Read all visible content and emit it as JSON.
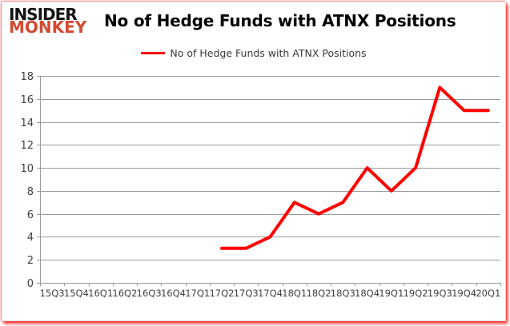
{
  "header": {
    "logo_line1": "INSIDER",
    "logo_line2": "MONKEY",
    "title": "No of Hedge Funds with ATNX Positions"
  },
  "legend": {
    "label": "No of Hedge Funds with ATNX Positions",
    "color": "#ff0000"
  },
  "chart_data": {
    "type": "line",
    "title": "No of Hedge Funds with ATNX Positions",
    "xlabel": "",
    "ylabel": "",
    "categories": [
      "15Q3",
      "15Q4",
      "16Q1",
      "16Q2",
      "16Q3",
      "16Q4",
      "17Q1",
      "17Q2",
      "17Q3",
      "17Q4",
      "18Q1",
      "18Q2",
      "18Q3",
      "18Q4",
      "19Q1",
      "19Q2",
      "19Q3",
      "19Q4",
      "20Q1"
    ],
    "series": [
      {
        "name": "No of Hedge Funds with ATNX Positions",
        "color": "#ff0000",
        "values": [
          null,
          null,
          null,
          null,
          null,
          null,
          null,
          3,
          3,
          4,
          7,
          6,
          7,
          10,
          8,
          10,
          17,
          15,
          15
        ]
      }
    ],
    "ylim": [
      0,
      18
    ],
    "ytick_step": 2,
    "grid": true,
    "legend_position": "top-center",
    "colors": {
      "gridline": "#9b9b9b",
      "axis": "#9b9b9b",
      "tick_label": "#404040"
    }
  }
}
